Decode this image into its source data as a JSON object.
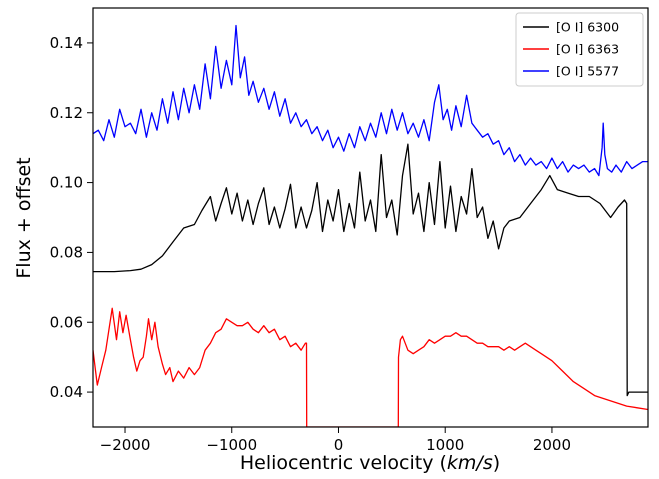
{
  "chart_data": {
    "type": "line",
    "xlabel": "Heliocentric velocity",
    "xlabel_unit": "km/s",
    "ylabel": "Flux + offset",
    "xlim": [
      -2300,
      2900
    ],
    "ylim": [
      0.03,
      0.15
    ],
    "x_ticks": [
      -2000,
      -1000,
      0,
      1000,
      2000
    ],
    "x_tick_labels": [
      "−2000",
      "−1000",
      "0",
      "1000",
      "2000"
    ],
    "y_ticks": [
      0.04,
      0.06,
      0.08,
      0.1,
      0.12,
      0.14
    ],
    "y_tick_labels": [
      "0.04",
      "0.06",
      "0.08",
      "0.10",
      "0.12",
      "0.14"
    ],
    "grid": false,
    "legend_position": "top-right",
    "series": [
      {
        "name": "[O I] 6300",
        "color": "#000000",
        "points": [
          [
            -2300,
            0.0745
          ],
          [
            -2100,
            0.0745
          ],
          [
            -1950,
            0.0748
          ],
          [
            -1850,
            0.0752
          ],
          [
            -1750,
            0.0765
          ],
          [
            -1650,
            0.079
          ],
          [
            -1550,
            0.083
          ],
          [
            -1450,
            0.087
          ],
          [
            -1350,
            0.088
          ],
          [
            -1280,
            0.092
          ],
          [
            -1200,
            0.096
          ],
          [
            -1150,
            0.089
          ],
          [
            -1100,
            0.094
          ],
          [
            -1050,
            0.0985
          ],
          [
            -1000,
            0.091
          ],
          [
            -950,
            0.097
          ],
          [
            -900,
            0.089
          ],
          [
            -850,
            0.095
          ],
          [
            -800,
            0.088
          ],
          [
            -750,
            0.094
          ],
          [
            -700,
            0.0985
          ],
          [
            -650,
            0.088
          ],
          [
            -600,
            0.093
          ],
          [
            -550,
            0.087
          ],
          [
            -500,
            0.0925
          ],
          [
            -450,
            0.0995
          ],
          [
            -400,
            0.087
          ],
          [
            -350,
            0.093
          ],
          [
            -300,
            0.087
          ],
          [
            -250,
            0.092
          ],
          [
            -200,
            0.1
          ],
          [
            -150,
            0.086
          ],
          [
            -100,
            0.095
          ],
          [
            -50,
            0.089
          ],
          [
            0,
            0.098
          ],
          [
            50,
            0.086
          ],
          [
            100,
            0.094
          ],
          [
            150,
            0.087
          ],
          [
            200,
            0.103
          ],
          [
            250,
            0.089
          ],
          [
            300,
            0.095
          ],
          [
            350,
            0.086
          ],
          [
            400,
            0.108
          ],
          [
            450,
            0.09
          ],
          [
            500,
            0.095
          ],
          [
            550,
            0.085
          ],
          [
            600,
            0.102
          ],
          [
            650,
            0.111
          ],
          [
            700,
            0.091
          ],
          [
            750,
            0.097
          ],
          [
            800,
            0.086
          ],
          [
            850,
            0.1
          ],
          [
            900,
            0.088
          ],
          [
            950,
            0.106
          ],
          [
            1000,
            0.087
          ],
          [
            1050,
            0.099
          ],
          [
            1100,
            0.086
          ],
          [
            1150,
            0.096
          ],
          [
            1200,
            0.091
          ],
          [
            1250,
            0.104
          ],
          [
            1300,
            0.09
          ],
          [
            1350,
            0.093
          ],
          [
            1400,
            0.084
          ],
          [
            1450,
            0.089
          ],
          [
            1500,
            0.081
          ],
          [
            1550,
            0.087
          ],
          [
            1600,
            0.089
          ],
          [
            1700,
            0.09
          ],
          [
            1800,
            0.094
          ],
          [
            1900,
            0.098
          ],
          [
            1980,
            0.102
          ],
          [
            2050,
            0.098
          ],
          [
            2150,
            0.097
          ],
          [
            2250,
            0.096
          ],
          [
            2350,
            0.096
          ],
          [
            2450,
            0.094
          ],
          [
            2550,
            0.09
          ],
          [
            2620,
            0.093
          ],
          [
            2680,
            0.095
          ],
          [
            2700,
            0.094
          ],
          [
            2705,
            0.039
          ],
          [
            2720,
            0.04
          ],
          [
            2800,
            0.04
          ],
          [
            2900,
            0.04
          ]
        ]
      },
      {
        "name": "[O I] 6363",
        "color": "#ff0000",
        "points": [
          [
            -2300,
            0.052
          ],
          [
            -2260,
            0.042
          ],
          [
            -2220,
            0.047
          ],
          [
            -2180,
            0.052
          ],
          [
            -2150,
            0.058
          ],
          [
            -2120,
            0.064
          ],
          [
            -2080,
            0.055
          ],
          [
            -2050,
            0.063
          ],
          [
            -2020,
            0.057
          ],
          [
            -1990,
            0.062
          ],
          [
            -1950,
            0.055
          ],
          [
            -1920,
            0.05
          ],
          [
            -1890,
            0.046
          ],
          [
            -1860,
            0.049
          ],
          [
            -1830,
            0.05
          ],
          [
            -1800,
            0.056
          ],
          [
            -1780,
            0.061
          ],
          [
            -1750,
            0.055
          ],
          [
            -1720,
            0.06
          ],
          [
            -1690,
            0.053
          ],
          [
            -1650,
            0.048
          ],
          [
            -1620,
            0.045
          ],
          [
            -1580,
            0.047
          ],
          [
            -1550,
            0.043
          ],
          [
            -1500,
            0.046
          ],
          [
            -1450,
            0.044
          ],
          [
            -1400,
            0.047
          ],
          [
            -1350,
            0.045
          ],
          [
            -1300,
            0.047
          ],
          [
            -1250,
            0.052
          ],
          [
            -1200,
            0.054
          ],
          [
            -1150,
            0.057
          ],
          [
            -1100,
            0.058
          ],
          [
            -1050,
            0.061
          ],
          [
            -1000,
            0.06
          ],
          [
            -950,
            0.059
          ],
          [
            -900,
            0.059
          ],
          [
            -850,
            0.06
          ],
          [
            -800,
            0.058
          ],
          [
            -750,
            0.057
          ],
          [
            -700,
            0.059
          ],
          [
            -650,
            0.057
          ],
          [
            -600,
            0.058
          ],
          [
            -550,
            0.055
          ],
          [
            -500,
            0.056
          ],
          [
            -450,
            0.053
          ],
          [
            -400,
            0.054
          ],
          [
            -350,
            0.052
          ],
          [
            -310,
            0.054
          ],
          [
            -300,
            0.054
          ],
          [
            -298,
            0.03
          ],
          [
            560,
            0.03
          ],
          [
            562,
            0.05
          ],
          [
            580,
            0.055
          ],
          [
            600,
            0.056
          ],
          [
            650,
            0.052
          ],
          [
            700,
            0.051
          ],
          [
            750,
            0.052
          ],
          [
            800,
            0.053
          ],
          [
            850,
            0.055
          ],
          [
            900,
            0.054
          ],
          [
            950,
            0.055
          ],
          [
            1000,
            0.056
          ],
          [
            1050,
            0.056
          ],
          [
            1100,
            0.057
          ],
          [
            1150,
            0.056
          ],
          [
            1200,
            0.056
          ],
          [
            1250,
            0.055
          ],
          [
            1300,
            0.054
          ],
          [
            1350,
            0.054
          ],
          [
            1400,
            0.053
          ],
          [
            1450,
            0.053
          ],
          [
            1500,
            0.053
          ],
          [
            1550,
            0.052
          ],
          [
            1600,
            0.053
          ],
          [
            1650,
            0.052
          ],
          [
            1700,
            0.053
          ],
          [
            1750,
            0.054
          ],
          [
            1800,
            0.053
          ],
          [
            1850,
            0.052
          ],
          [
            1900,
            0.051
          ],
          [
            2000,
            0.049
          ],
          [
            2100,
            0.046
          ],
          [
            2200,
            0.043
          ],
          [
            2300,
            0.041
          ],
          [
            2400,
            0.039
          ],
          [
            2500,
            0.038
          ],
          [
            2600,
            0.037
          ],
          [
            2700,
            0.036
          ],
          [
            2800,
            0.0355
          ],
          [
            2900,
            0.035
          ]
        ]
      },
      {
        "name": "[O I] 5577",
        "color": "#0000ff",
        "points": [
          [
            -2300,
            0.114
          ],
          [
            -2250,
            0.115
          ],
          [
            -2200,
            0.112
          ],
          [
            -2150,
            0.118
          ],
          [
            -2100,
            0.113
          ],
          [
            -2050,
            0.121
          ],
          [
            -2000,
            0.116
          ],
          [
            -1950,
            0.117
          ],
          [
            -1900,
            0.114
          ],
          [
            -1850,
            0.121
          ],
          [
            -1800,
            0.113
          ],
          [
            -1750,
            0.12
          ],
          [
            -1700,
            0.115
          ],
          [
            -1650,
            0.124
          ],
          [
            -1600,
            0.117
          ],
          [
            -1550,
            0.126
          ],
          [
            -1500,
            0.118
          ],
          [
            -1450,
            0.127
          ],
          [
            -1400,
            0.12
          ],
          [
            -1350,
            0.128
          ],
          [
            -1300,
            0.121
          ],
          [
            -1250,
            0.134
          ],
          [
            -1200,
            0.124
          ],
          [
            -1150,
            0.139
          ],
          [
            -1100,
            0.127
          ],
          [
            -1050,
            0.135
          ],
          [
            -1000,
            0.128
          ],
          [
            -960,
            0.145
          ],
          [
            -920,
            0.13
          ],
          [
            -880,
            0.136
          ],
          [
            -840,
            0.125
          ],
          [
            -800,
            0.129
          ],
          [
            -750,
            0.123
          ],
          [
            -700,
            0.127
          ],
          [
            -650,
            0.121
          ],
          [
            -600,
            0.126
          ],
          [
            -550,
            0.119
          ],
          [
            -500,
            0.124
          ],
          [
            -450,
            0.117
          ],
          [
            -400,
            0.12
          ],
          [
            -350,
            0.116
          ],
          [
            -300,
            0.118
          ],
          [
            -250,
            0.114
          ],
          [
            -200,
            0.116
          ],
          [
            -150,
            0.112
          ],
          [
            -100,
            0.115
          ],
          [
            -50,
            0.11
          ],
          [
            0,
            0.113
          ],
          [
            50,
            0.109
          ],
          [
            100,
            0.114
          ],
          [
            150,
            0.11
          ],
          [
            200,
            0.116
          ],
          [
            250,
            0.112
          ],
          [
            300,
            0.117
          ],
          [
            350,
            0.113
          ],
          [
            400,
            0.12
          ],
          [
            450,
            0.114
          ],
          [
            500,
            0.121
          ],
          [
            550,
            0.115
          ],
          [
            600,
            0.12
          ],
          [
            650,
            0.114
          ],
          [
            700,
            0.117
          ],
          [
            750,
            0.113
          ],
          [
            800,
            0.118
          ],
          [
            850,
            0.112
          ],
          [
            900,
            0.123
          ],
          [
            940,
            0.128
          ],
          [
            980,
            0.118
          ],
          [
            1020,
            0.121
          ],
          [
            1060,
            0.115
          ],
          [
            1100,
            0.122
          ],
          [
            1150,
            0.116
          ],
          [
            1200,
            0.125
          ],
          [
            1250,
            0.117
          ],
          [
            1300,
            0.115
          ],
          [
            1350,
            0.113
          ],
          [
            1400,
            0.114
          ],
          [
            1450,
            0.111
          ],
          [
            1500,
            0.112
          ],
          [
            1550,
            0.108
          ],
          [
            1600,
            0.11
          ],
          [
            1650,
            0.106
          ],
          [
            1700,
            0.108
          ],
          [
            1750,
            0.105
          ],
          [
            1800,
            0.107
          ],
          [
            1850,
            0.105
          ],
          [
            1900,
            0.106
          ],
          [
            1950,
            0.104
          ],
          [
            2000,
            0.107
          ],
          [
            2050,
            0.104
          ],
          [
            2100,
            0.106
          ],
          [
            2150,
            0.103
          ],
          [
            2200,
            0.105
          ],
          [
            2250,
            0.104
          ],
          [
            2300,
            0.105
          ],
          [
            2350,
            0.103
          ],
          [
            2400,
            0.104
          ],
          [
            2440,
            0.102
          ],
          [
            2470,
            0.11
          ],
          [
            2480,
            0.117
          ],
          [
            2495,
            0.108
          ],
          [
            2520,
            0.104
          ],
          [
            2560,
            0.103
          ],
          [
            2600,
            0.105
          ],
          [
            2650,
            0.103
          ],
          [
            2700,
            0.106
          ],
          [
            2750,
            0.104
          ],
          [
            2800,
            0.105
          ],
          [
            2850,
            0.106
          ],
          [
            2900,
            0.106
          ]
        ]
      }
    ]
  }
}
